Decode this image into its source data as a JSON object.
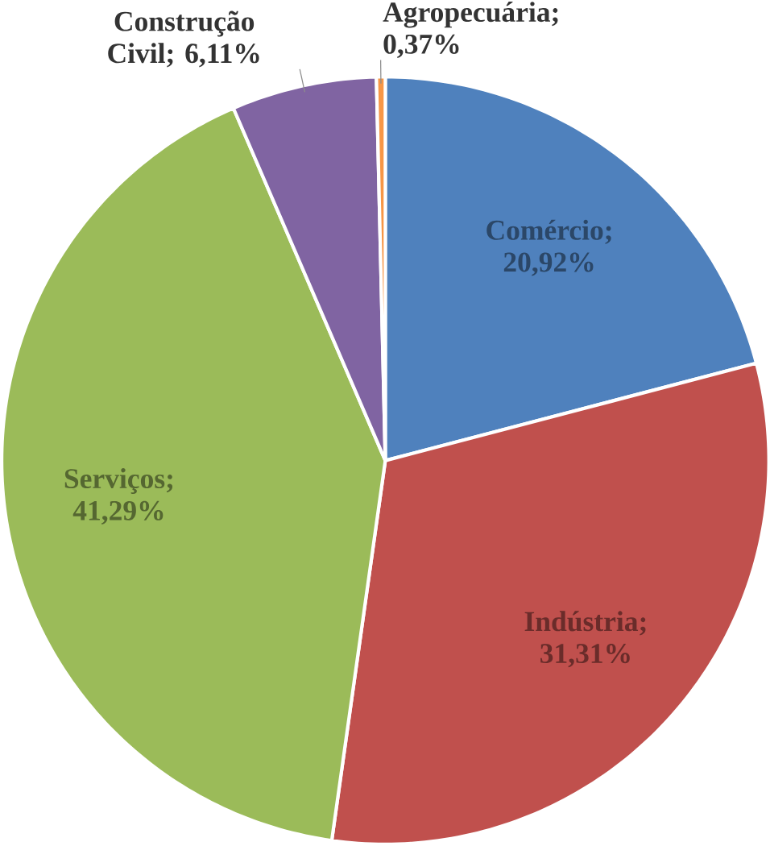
{
  "chart_data": {
    "type": "pie",
    "categories": [
      "Comércio",
      "Indústria",
      "Serviços",
      "Construção Civil",
      "Agropecuária"
    ],
    "values": [
      20.92,
      31.31,
      41.29,
      6.11,
      0.37
    ],
    "value_labels": [
      "; 20,92%",
      "; 31,31%",
      "; 41,29%",
      "; 6,11%",
      "; 0,37%"
    ],
    "colors": [
      "#4f81bd",
      "#c0504d",
      "#9bbb59",
      "#8064a2",
      "#f79646"
    ]
  }
}
